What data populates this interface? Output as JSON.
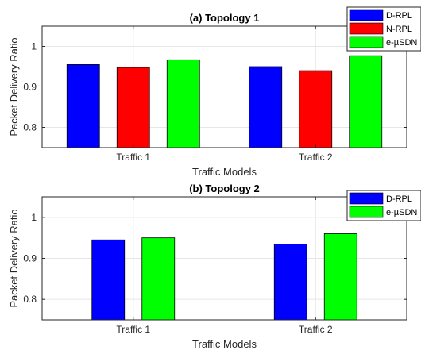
{
  "colors": {
    "background": "#ffffff",
    "axis": "#262626",
    "grid": "#e6e6e6",
    "legend_box": "#262626"
  },
  "chart_data": [
    {
      "type": "bar",
      "title": "(a) Topology 1",
      "xlabel": "Traffic Models",
      "ylabel": "Packet Delivery Ratio",
      "categories": [
        "Traffic 1",
        "Traffic 2"
      ],
      "ylim": [
        0.75,
        1.05
      ],
      "yticks": [
        0.8,
        0.9,
        1
      ],
      "ytick_labels": [
        "0.8",
        "0.9",
        "1"
      ],
      "grid": true,
      "legend_position": "top-right",
      "series": [
        {
          "name": "D-RPL",
          "color": "#0000ff",
          "values": [
            0.955,
            0.95
          ]
        },
        {
          "name": "N-RPL",
          "color": "#ff0000",
          "values": [
            0.948,
            0.94
          ]
        },
        {
          "name": "e-µSDN",
          "color": "#00ff00",
          "values": [
            0.967,
            0.977
          ]
        }
      ]
    },
    {
      "type": "bar",
      "title": "(b) Topology 2",
      "xlabel": "Traffic Models",
      "ylabel": "Packet Delivery Ratio",
      "categories": [
        "Traffic 1",
        "Traffic 2"
      ],
      "ylim": [
        0.75,
        1.05
      ],
      "yticks": [
        0.8,
        0.9,
        1
      ],
      "ytick_labels": [
        "0.8",
        "0.9",
        "1"
      ],
      "grid": true,
      "legend_position": "top-right",
      "series": [
        {
          "name": "D-RPL",
          "color": "#0000ff",
          "values": [
            0.945,
            0.935
          ]
        },
        {
          "name": "e-µSDN",
          "color": "#00ff00",
          "values": [
            0.95,
            0.96
          ]
        }
      ]
    }
  ]
}
